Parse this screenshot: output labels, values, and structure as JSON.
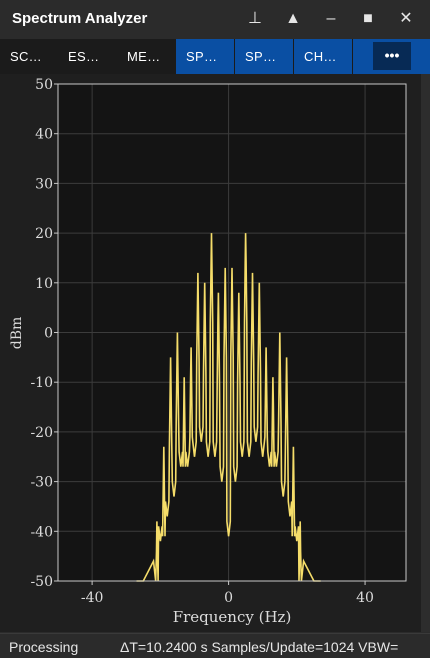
{
  "window": {
    "title": "Spectrum Analyzer"
  },
  "titlebar_buttons": [
    {
      "icon": "pin-icon",
      "glyph": "⊥"
    },
    {
      "icon": "triangle-up-icon",
      "glyph": "▲"
    },
    {
      "icon": "minimize-icon",
      "glyph": "–"
    },
    {
      "icon": "maximize-icon",
      "glyph": "■"
    },
    {
      "icon": "close-icon",
      "glyph": "✕"
    }
  ],
  "tabs": [
    {
      "label": "SC…",
      "active": false
    },
    {
      "label": "ES…",
      "active": false
    },
    {
      "label": "ME…",
      "active": false
    },
    {
      "label": "SP…",
      "active": true
    },
    {
      "label": "SP…",
      "active": true
    },
    {
      "label": "CH…",
      "active": true
    }
  ],
  "more_button": {
    "label": "•••"
  },
  "status": {
    "left": "Processing",
    "right": "ΔT=10.2400 s  Samples/Update=1024  VBW="
  },
  "colors": {
    "trace": "#f5dd6a",
    "tab_active": "#0a4fa3",
    "plot_bg": "#141414"
  },
  "chart_data": {
    "type": "line",
    "title": "",
    "xlabel": "Frequency (Hz)",
    "ylabel": "dBm",
    "xlim": [
      -50,
      52
    ],
    "ylim": [
      -50,
      50
    ],
    "xticks": [
      -40,
      0,
      40
    ],
    "yticks": [
      50,
      40,
      30,
      20,
      10,
      0,
      -10,
      -20,
      -30,
      -40,
      -50
    ],
    "grid": true,
    "peaks": [
      {
        "f": -21,
        "dbm": -38
      },
      {
        "f": -19,
        "dbm": -23
      },
      {
        "f": -17,
        "dbm": -5
      },
      {
        "f": -15,
        "dbm": 0
      },
      {
        "f": -13,
        "dbm": -9
      },
      {
        "f": -11,
        "dbm": -3
      },
      {
        "f": -9,
        "dbm": 12
      },
      {
        "f": -7,
        "dbm": 10
      },
      {
        "f": -5,
        "dbm": 20
      },
      {
        "f": -3,
        "dbm": 8
      },
      {
        "f": -1,
        "dbm": 13
      },
      {
        "f": 1,
        "dbm": 13
      },
      {
        "f": 3,
        "dbm": 8
      },
      {
        "f": 5,
        "dbm": 20
      },
      {
        "f": 7,
        "dbm": 12
      },
      {
        "f": 9,
        "dbm": 10
      },
      {
        "f": 11,
        "dbm": -3
      },
      {
        "f": 13,
        "dbm": -9
      },
      {
        "f": 15,
        "dbm": 0
      },
      {
        "f": 17,
        "dbm": -5
      },
      {
        "f": 19,
        "dbm": -23
      },
      {
        "f": 21,
        "dbm": -38
      }
    ],
    "valleys": [
      {
        "f": -20,
        "dbm": -42
      },
      {
        "f": -18,
        "dbm": -37
      },
      {
        "f": -16,
        "dbm": -33
      },
      {
        "f": -14,
        "dbm": -27
      },
      {
        "f": -12,
        "dbm": -27
      },
      {
        "f": -10,
        "dbm": -25
      },
      {
        "f": -8,
        "dbm": -22
      },
      {
        "f": -6,
        "dbm": -25
      },
      {
        "f": -4,
        "dbm": -25
      },
      {
        "f": -2,
        "dbm": -30
      },
      {
        "f": 0,
        "dbm": -41
      },
      {
        "f": 2,
        "dbm": -30
      },
      {
        "f": 4,
        "dbm": -25
      },
      {
        "f": 6,
        "dbm": -25
      },
      {
        "f": 8,
        "dbm": -22
      },
      {
        "f": 10,
        "dbm": -25
      },
      {
        "f": 12,
        "dbm": -27
      },
      {
        "f": 14,
        "dbm": -27
      },
      {
        "f": 16,
        "dbm": -33
      },
      {
        "f": 18,
        "dbm": -37
      },
      {
        "f": 20,
        "dbm": -42
      }
    ],
    "edges": [
      {
        "f": -25,
        "dbm": -50
      },
      {
        "f": 25,
        "dbm": -50
      }
    ]
  }
}
